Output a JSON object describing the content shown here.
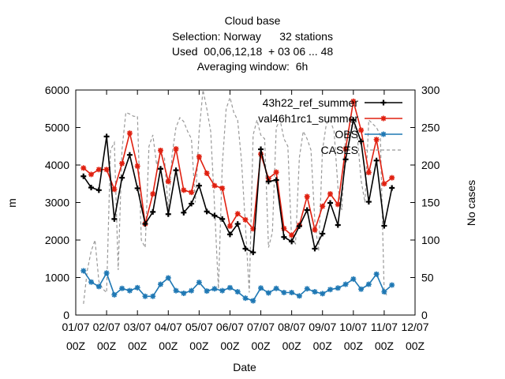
{
  "chart_data": {
    "type": "line",
    "title_lines": [
      "Cloud base",
      "Selection: Norway      32 stations",
      "Used  00,06,12,18  + 03 06 ... 48",
      "Averaging window:  6h"
    ],
    "xlabel": "Date",
    "ylabel": "m",
    "y2label": "No cases",
    "ylim": [
      0,
      6000
    ],
    "y2lim": [
      0,
      300
    ],
    "y_ticks": [
      "0",
      "1000",
      "2000",
      "3000",
      "4000",
      "5000",
      "6000"
    ],
    "y2_ticks": [
      "0",
      "50",
      "100",
      "150",
      "200",
      "250",
      "300"
    ],
    "xlim": [
      0,
      11
    ],
    "x_tick_labels": [
      [
        "01/07",
        "00Z"
      ],
      [
        "02/07",
        "00Z"
      ],
      [
        "03/07",
        "00Z"
      ],
      [
        "04/07",
        "00Z"
      ],
      [
        "05/07",
        "00Z"
      ],
      [
        "06/07",
        "00Z"
      ],
      [
        "07/07",
        "00Z"
      ],
      [
        "08/07",
        "00Z"
      ],
      [
        "09/07",
        "00Z"
      ],
      [
        "10/07",
        "00Z"
      ],
      [
        "11/07",
        "00Z"
      ],
      [
        "12/07",
        "00Z"
      ]
    ],
    "x_step_hours": 6,
    "x_start_offset_hours": 6,
    "grid": false,
    "legend_position": "top-right",
    "legend_entries": [
      "43h22_ref_summer",
      "val46h1rc1_summer",
      "OBS",
      "CASES"
    ],
    "series": [
      {
        "name": "43h22_ref_summer",
        "color": "#000000",
        "marker": "plus",
        "axis": "left",
        "values": [
          3700,
          3400,
          3330,
          4760,
          2560,
          3660,
          4270,
          3380,
          2430,
          2750,
          3900,
          2690,
          3860,
          2730,
          2970,
          3450,
          2760,
          2650,
          2560,
          2150,
          2430,
          1770,
          1670,
          4420,
          3560,
          3600,
          2080,
          1960,
          2370,
          2800,
          1770,
          2170,
          2990,
          2400,
          4150,
          5200,
          4630,
          3020,
          4120,
          2380,
          3390
        ]
      },
      {
        "name": "val46h1rc1_summer",
        "color": "#e02010",
        "marker": "star",
        "axis": "left",
        "values": [
          3920,
          3750,
          3880,
          3880,
          3350,
          4040,
          4850,
          3970,
          2430,
          3230,
          4390,
          3560,
          4430,
          3330,
          3270,
          4220,
          3780,
          3450,
          3380,
          2370,
          2700,
          2540,
          2300,
          4290,
          3640,
          3810,
          2310,
          2130,
          2400,
          3160,
          2270,
          2900,
          3230,
          2950,
          4430,
          5700,
          4930,
          3800,
          4680,
          3500,
          3660
        ]
      },
      {
        "name": "OBS",
        "color": "#1f78b4",
        "marker": "star",
        "axis": "left",
        "values": [
          1180,
          880,
          760,
          1120,
          540,
          710,
          650,
          730,
          500,
          500,
          820,
          990,
          650,
          580,
          650,
          870,
          640,
          700,
          650,
          730,
          620,
          450,
          380,
          720,
          590,
          710,
          600,
          600,
          510,
          700,
          620,
          570,
          680,
          720,
          820,
          960,
          690,
          820,
          1090,
          620,
          800
        ]
      },
      {
        "name": "CASES",
        "color": "#999999",
        "dash": "dashed",
        "axis": "right",
        "x_step_hours": 3,
        "x_start_offset_hours": 6,
        "values": [
          15,
          60,
          85,
          100,
          45,
          35,
          30,
          220,
          230,
          60,
          220,
          270,
          268,
          265,
          265,
          100,
          90,
          225,
          240,
          200,
          215,
          210,
          140,
          215,
          250,
          263,
          258,
          245,
          235,
          150,
          245,
          300,
          275,
          245,
          145,
          35,
          200,
          275,
          290,
          270,
          260,
          205,
          120,
          30,
          240,
          260,
          240,
          235,
          90,
          110,
          250,
          260,
          235,
          225,
          100,
          95,
          210,
          245,
          235,
          220,
          125,
          85,
          220,
          255,
          260,
          245,
          170,
          140,
          240,
          250,
          255,
          240,
          180,
          150,
          260,
          255,
          250,
          240,
          30,
          25
        ]
      }
    ]
  }
}
